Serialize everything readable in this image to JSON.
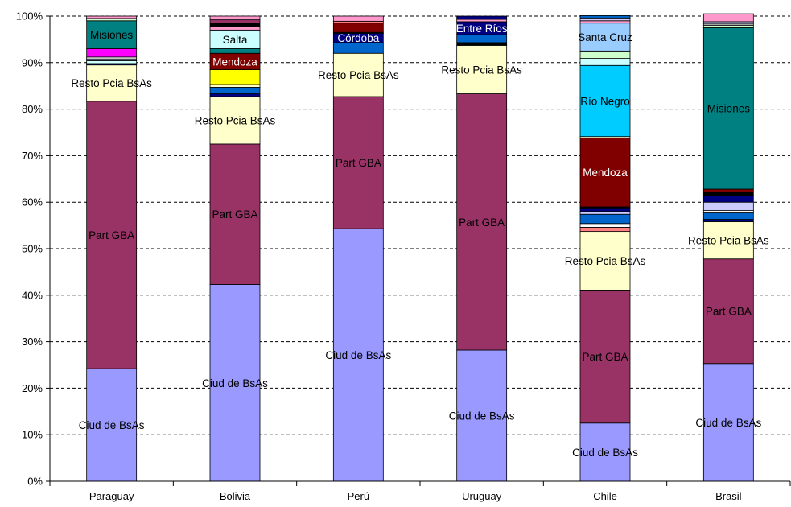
{
  "chart_data": {
    "type": "bar",
    "stacked": true,
    "percent_stacked": true,
    "title": "",
    "xlabel": "",
    "ylabel": "",
    "ylim": [
      0,
      100
    ],
    "yticks": [
      "0%",
      "10%",
      "20%",
      "30%",
      "40%",
      "50%",
      "60%",
      "70%",
      "80%",
      "90%",
      "100%"
    ],
    "grid": "horizontal dashed",
    "legend": "none",
    "categories": [
      "Paraguay",
      "Bolivia",
      "Perú",
      "Uruguay",
      "Chile",
      "Brasil"
    ],
    "bars": [
      {
        "category": "Paraguay",
        "segments": [
          {
            "value": 24.2,
            "color": "#9999ff",
            "label": "Ciud de BsAs"
          },
          {
            "value": 57.5,
            "color": "#993366",
            "label": "Part GBA"
          },
          {
            "value": 7.8,
            "color": "#ffffcc",
            "label": "Resto Pcia BsAs"
          },
          {
            "value": 0.3,
            "color": "#000080",
            "label": ""
          },
          {
            "value": 0.6,
            "color": "#ccffff",
            "label": ""
          },
          {
            "value": 0.4,
            "color": "#ccccff",
            "label": ""
          },
          {
            "value": 0.4,
            "color": "#ffffff",
            "label": ""
          },
          {
            "value": 1.8,
            "color": "#ff00ff",
            "label": ""
          },
          {
            "value": 6.0,
            "color": "#008080",
            "label": "Misiones"
          },
          {
            "value": 0.5,
            "color": "#ccffcc",
            "label": ""
          },
          {
            "value": 0.5,
            "color": "#ff99cc",
            "label": ""
          }
        ]
      },
      {
        "category": "Bolivia",
        "segments": [
          {
            "value": 42.3,
            "color": "#9999ff",
            "label": "Ciud de BsAs"
          },
          {
            "value": 30.2,
            "color": "#993366",
            "label": "Part GBA"
          },
          {
            "value": 10.2,
            "color": "#ffffcc",
            "label": "Resto Pcia BsAs"
          },
          {
            "value": 0.6,
            "color": "#000080",
            "label": ""
          },
          {
            "value": 1.4,
            "color": "#0066cc",
            "label": ""
          },
          {
            "value": 0.6,
            "color": "#ffffcc",
            "label": ""
          },
          {
            "value": 3.2,
            "color": "#ffff00",
            "label": ""
          },
          {
            "value": 3.5,
            "color": "#800000",
            "label": "Mendoza"
          },
          {
            "value": 1.0,
            "color": "#008080",
            "label": ""
          },
          {
            "value": 4.0,
            "color": "#ccffff",
            "label": "Salta"
          },
          {
            "value": 0.8,
            "color": "#ff99cc",
            "label": ""
          },
          {
            "value": 0.7,
            "color": "#000000",
            "label": ""
          },
          {
            "value": 0.7,
            "color": "#993366",
            "label": ""
          },
          {
            "value": 0.8,
            "color": "#ff99cc",
            "label": ""
          }
        ]
      },
      {
        "category": "Perú",
        "segments": [
          {
            "value": 54.3,
            "color": "#9999ff",
            "label": "Ciud de BsAs"
          },
          {
            "value": 28.4,
            "color": "#993366",
            "label": "Part GBA"
          },
          {
            "value": 9.3,
            "color": "#ffffcc",
            "label": "Resto Pcia BsAs"
          },
          {
            "value": 2.3,
            "color": "#0066cc",
            "label": ""
          },
          {
            "value": 2.0,
            "color": "#000080",
            "label": "Córdoba"
          },
          {
            "value": 0.2,
            "color": "#000000",
            "label": ""
          },
          {
            "value": 2.0,
            "color": "#800000",
            "label": ""
          },
          {
            "value": 0.4,
            "color": "#ff8080",
            "label": ""
          },
          {
            "value": 1.1,
            "color": "#ff99cc",
            "label": ""
          }
        ]
      },
      {
        "category": "Uruguay",
        "segments": [
          {
            "value": 28.2,
            "color": "#9999ff",
            "label": "Ciud de BsAs"
          },
          {
            "value": 55.1,
            "color": "#993366",
            "label": "Part GBA"
          },
          {
            "value": 10.4,
            "color": "#ffffcc",
            "label": "Resto Pcia BsAs"
          },
          {
            "value": 0.6,
            "color": "#000000",
            "label": ""
          },
          {
            "value": 1.7,
            "color": "#0066cc",
            "label": ""
          },
          {
            "value": 2.8,
            "color": "#000080",
            "label": "Entre Ríos"
          },
          {
            "value": 0.5,
            "color": "#ff99cc",
            "label": ""
          },
          {
            "value": 0.7,
            "color": "#000080",
            "label": ""
          }
        ]
      },
      {
        "category": "Chile",
        "segments": [
          {
            "value": 12.5,
            "color": "#9999ff",
            "label": "Ciud de BsAs"
          },
          {
            "value": 28.6,
            "color": "#993366",
            "label": "Part GBA"
          },
          {
            "value": 12.6,
            "color": "#ffffcc",
            "label": "Resto Pcia BsAs"
          },
          {
            "value": 0.9,
            "color": "#ff8080",
            "label": ""
          },
          {
            "value": 0.8,
            "color": "#ffffff",
            "label": ""
          },
          {
            "value": 2.0,
            "color": "#0066cc",
            "label": ""
          },
          {
            "value": 0.6,
            "color": "#ccccff",
            "label": ""
          },
          {
            "value": 0.6,
            "color": "#000080",
            "label": ""
          },
          {
            "value": 0.4,
            "color": "#000000",
            "label": ""
          },
          {
            "value": 14.8,
            "color": "#800000",
            "label": "Mendoza"
          },
          {
            "value": 0.3,
            "color": "#ffffcc",
            "label": ""
          },
          {
            "value": 15.3,
            "color": "#00ccff",
            "label": "Río Negro"
          },
          {
            "value": 1.5,
            "color": "#ccffff",
            "label": ""
          },
          {
            "value": 1.6,
            "color": "#ccffcc",
            "label": ""
          },
          {
            "value": 6.0,
            "color": "#99ccff",
            "label": "Santa Cruz"
          },
          {
            "value": 0.5,
            "color": "#ff99cc",
            "label": ""
          },
          {
            "value": 0.6,
            "color": "#ccccff",
            "label": ""
          },
          {
            "value": 0.5,
            "color": "#0066cc",
            "label": ""
          }
        ]
      },
      {
        "category": "Brasil",
        "segments": [
          {
            "value": 25.3,
            "color": "#9999ff",
            "label": "Ciud de BsAs"
          },
          {
            "value": 22.5,
            "color": "#993366",
            "label": "Part GBA"
          },
          {
            "value": 8.0,
            "color": "#ffffcc",
            "label": "Resto Pcia BsAs"
          },
          {
            "value": 0.5,
            "color": "#000080",
            "label": ""
          },
          {
            "value": 1.4,
            "color": "#0066cc",
            "label": ""
          },
          {
            "value": 0.5,
            "color": "#ffffff",
            "label": ""
          },
          {
            "value": 1.8,
            "color": "#ccccff",
            "label": ""
          },
          {
            "value": 1.5,
            "color": "#000080",
            "label": ""
          },
          {
            "value": 0.7,
            "color": "#000000",
            "label": ""
          },
          {
            "value": 0.6,
            "color": "#800000",
            "label": ""
          },
          {
            "value": 34.7,
            "color": "#008080",
            "label": "Misiones"
          },
          {
            "value": 0.5,
            "color": "#ccffcc",
            "label": ""
          },
          {
            "value": 0.3,
            "color": "#ffffff",
            "label": ""
          },
          {
            "value": 0.5,
            "color": "#ccccff",
            "label": ""
          },
          {
            "value": 1.7,
            "color": "#ff99cc",
            "label": ""
          }
        ]
      }
    ]
  }
}
